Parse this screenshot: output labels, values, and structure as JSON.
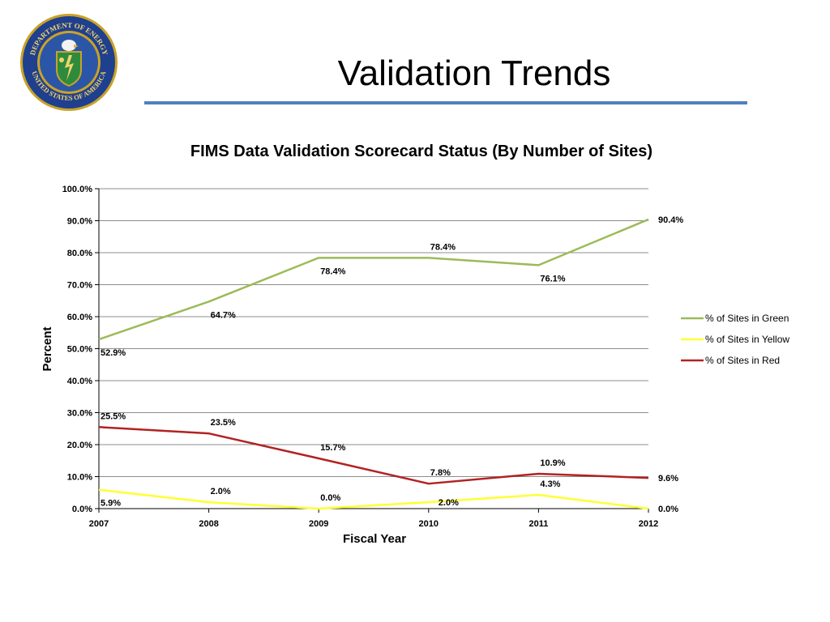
{
  "slide": {
    "title": "Validation Trends",
    "seal_text_top": "DEPARTMENT OF ENERGY",
    "seal_text_bottom": "UNITED STATES OF AMERICA"
  },
  "colors": {
    "title_rule": "#4f81bd",
    "green": "#9bbb59",
    "yellow": "#ffff33",
    "red": "#b22222",
    "grid": "#8c8c8c"
  },
  "chart_data": {
    "type": "line",
    "title": "FIMS Data Validation Scorecard Status (By Number of Sites)",
    "xlabel": "Fiscal Year",
    "ylabel": "Percent",
    "categories": [
      "2007",
      "2008",
      "2009",
      "2010",
      "2011",
      "2012"
    ],
    "ylim": [
      0,
      100
    ],
    "yticks": [
      "0.0%",
      "10.0%",
      "20.0%",
      "30.0%",
      "40.0%",
      "50.0%",
      "60.0%",
      "70.0%",
      "80.0%",
      "90.0%",
      "100.0%"
    ],
    "grid": true,
    "legend_position": "right",
    "series": [
      {
        "name": "% of Sites in Green",
        "color": "#9bbb59",
        "values": [
          52.9,
          64.7,
          78.4,
          78.4,
          76.1,
          90.4
        ],
        "labels": [
          "52.9%",
          "64.7%",
          "78.4%",
          "78.4%",
          "76.1%",
          "90.4%"
        ],
        "label_side": [
          "below",
          "below",
          "below",
          "above",
          "below",
          "right"
        ]
      },
      {
        "name": "% of Sites in Yellow",
        "color": "#ffff33",
        "values": [
          5.9,
          2.0,
          0.0,
          2.0,
          4.3,
          0.0
        ],
        "labels": [
          "5.9%",
          "2.0%",
          "0.0%",
          "2.0%",
          "4.3%",
          "0.0%"
        ],
        "label_side": [
          "below",
          "above",
          "above",
          "on",
          "above",
          "right"
        ]
      },
      {
        "name": "% of Sites in Red",
        "color": "#b22222",
        "values": [
          25.5,
          23.5,
          15.7,
          7.8,
          10.9,
          9.6
        ],
        "labels": [
          "25.5%",
          "23.5%",
          "15.7%",
          "7.8%",
          "10.9%",
          "9.6%"
        ],
        "label_side": [
          "above",
          "above",
          "above",
          "above",
          "above",
          "right"
        ]
      }
    ]
  }
}
